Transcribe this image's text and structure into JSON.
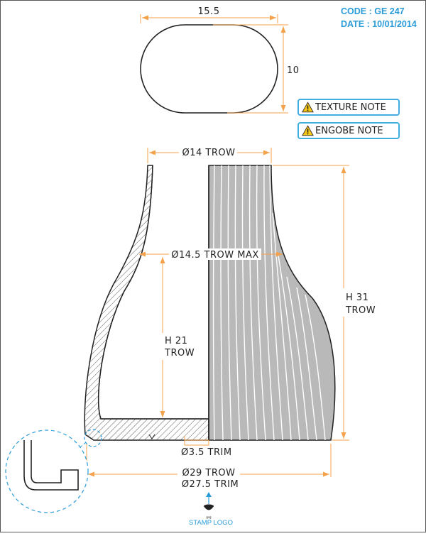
{
  "header": {
    "code": "CODE : GE 247",
    "date": "DATE : 10/01/2014"
  },
  "top_view": {
    "width_label": "15.5",
    "height_label": "10"
  },
  "notes": {
    "texture": "TEXTURE NOTE",
    "engobe": "ENGOBE NOTE",
    "accent_color": "#42aee0"
  },
  "section": {
    "top_diameter": "Ø14 TROW",
    "max_diameter": "Ø14.5 TROW MAX",
    "outer_height_line1": "H 31",
    "outer_height_line2": "TROW",
    "inner_height_line1": "H 21",
    "inner_height_line2": "TROW",
    "drain_diameter": "Ø3.5 TRIM",
    "base_diameter_trow": "Ø29 TROW",
    "base_diameter_trim": "Ø27.5 TRIM"
  },
  "stamp": {
    "icon": "stamp-logo-icon",
    "label": "STAMP LOGO"
  }
}
